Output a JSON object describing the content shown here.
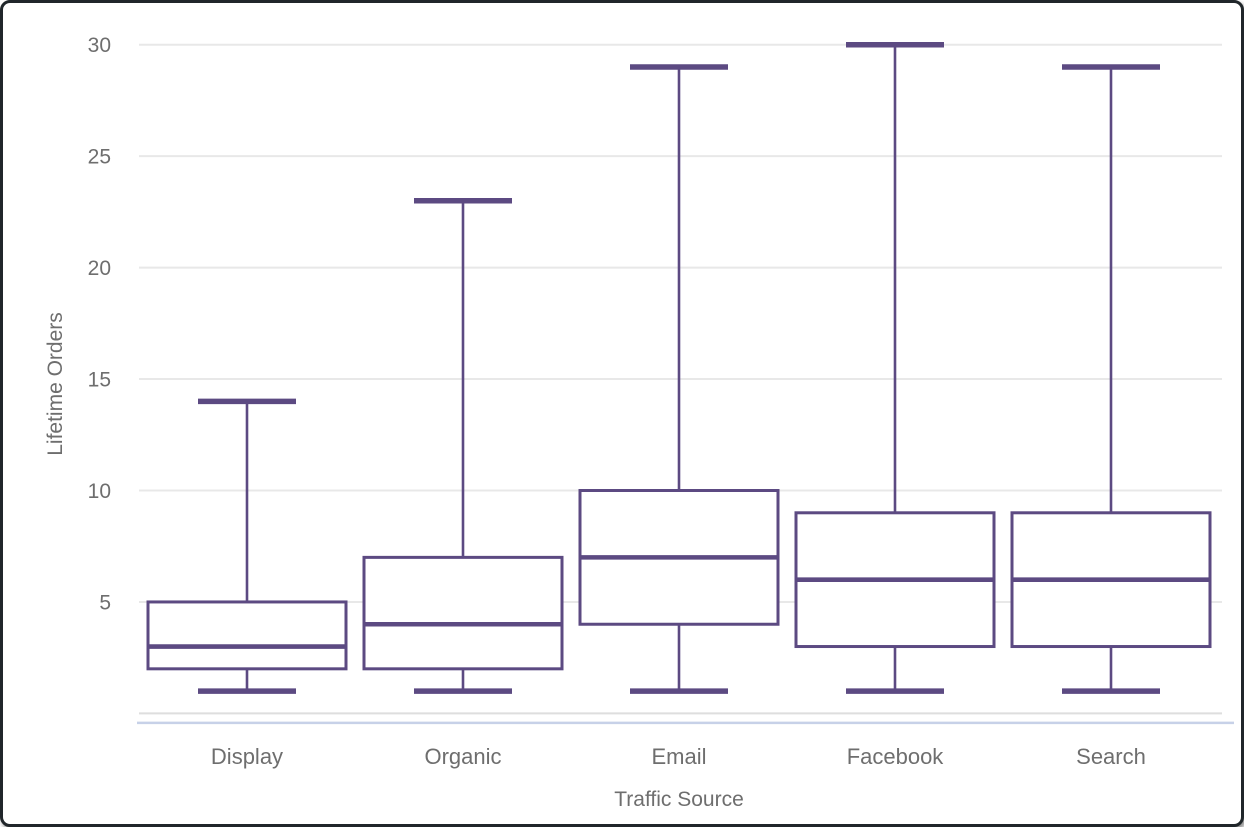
{
  "chart_data": {
    "type": "boxplot",
    "title": "",
    "xlabel": "Traffic Source",
    "ylabel": "Lifetime Orders",
    "categories": [
      "Display",
      "Organic",
      "Email",
      "Facebook",
      "Search"
    ],
    "series": [
      {
        "name": "Display",
        "min": 1,
        "q1": 2,
        "median": 3,
        "q3": 5,
        "max": 14
      },
      {
        "name": "Organic",
        "min": 1,
        "q1": 2,
        "median": 4,
        "q3": 7,
        "max": 23
      },
      {
        "name": "Email",
        "min": 1,
        "q1": 4,
        "median": 7,
        "q3": 10,
        "max": 29
      },
      {
        "name": "Facebook",
        "min": 1,
        "q1": 3,
        "median": 6,
        "q3": 9,
        "max": 30
      },
      {
        "name": "Search",
        "min": 1,
        "q1": 3,
        "median": 6,
        "q3": 9,
        "max": 29
      }
    ],
    "yticks": [
      5,
      10,
      15,
      20,
      25,
      30
    ],
    "ylim": [
      0,
      31
    ],
    "grid": true,
    "legend": "none",
    "colors": {
      "box_stroke": "#5c4a82",
      "box_fill": "#ffffff",
      "gridline": "#e8e8e8",
      "baseline": "#dedede",
      "accent_line": "#c7d1e8",
      "axis_text": "#6e6e6e",
      "frame_border": "#20262a"
    }
  }
}
